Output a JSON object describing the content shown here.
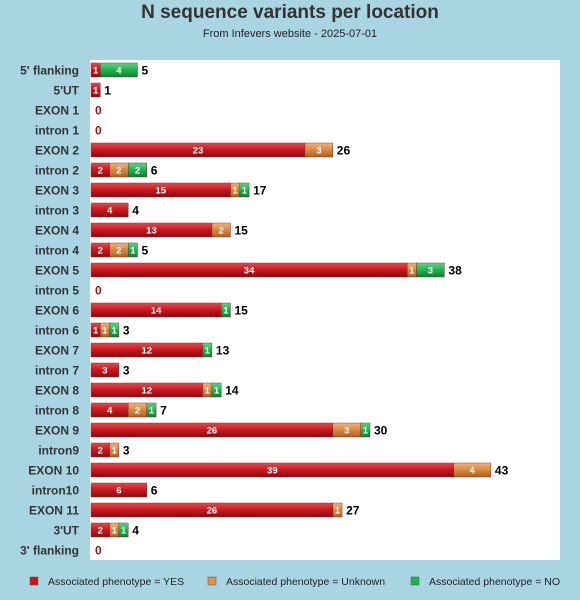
{
  "chart_data": {
    "type": "bar",
    "stacked": true,
    "orientation": "horizontal",
    "title": "N sequence variants per location",
    "subtitle": "From Infevers website - 2025-07-01",
    "categories": [
      "5' flanking",
      "5'UT",
      "EXON 1",
      "intron 1",
      "EXON 2",
      "intron 2",
      "EXON 3",
      "intron 3",
      "EXON 4",
      "intron 4",
      "EXON 5",
      "intron 5",
      "EXON 6",
      "intron 6",
      "EXON 7",
      "intron 7",
      "EXON 8",
      "intron 8",
      "EXON 9",
      "intron9",
      "EXON 10",
      "intron10",
      "EXON 11",
      "3'UT",
      "3' flanking"
    ],
    "series": [
      {
        "name": "Associated phenotype = YES",
        "color": "#c8161d",
        "values": [
          1,
          1,
          0,
          0,
          23,
          2,
          15,
          4,
          13,
          2,
          34,
          0,
          14,
          1,
          12,
          3,
          12,
          4,
          26,
          2,
          39,
          6,
          26,
          2,
          0
        ]
      },
      {
        "name": "Associated phenotype = Unknown",
        "color": "#e0904a",
        "values": [
          0,
          0,
          0,
          0,
          3,
          2,
          1,
          0,
          2,
          2,
          1,
          0,
          0,
          1,
          0,
          0,
          1,
          2,
          3,
          1,
          4,
          0,
          1,
          1,
          0
        ]
      },
      {
        "name": "Associated phenotype = NO",
        "color": "#1fb34e",
        "values": [
          4,
          0,
          0,
          0,
          0,
          2,
          1,
          0,
          0,
          1,
          3,
          0,
          1,
          1,
          1,
          0,
          1,
          1,
          1,
          0,
          0,
          0,
          0,
          1,
          0
        ]
      }
    ],
    "totals": [
      5,
      1,
      0,
      0,
      26,
      6,
      17,
      4,
      15,
      5,
      38,
      0,
      15,
      3,
      13,
      3,
      14,
      7,
      30,
      3,
      43,
      6,
      27,
      4,
      0
    ],
    "xlim": [
      0,
      52
    ],
    "grid": false,
    "legend_position": "bottom"
  }
}
